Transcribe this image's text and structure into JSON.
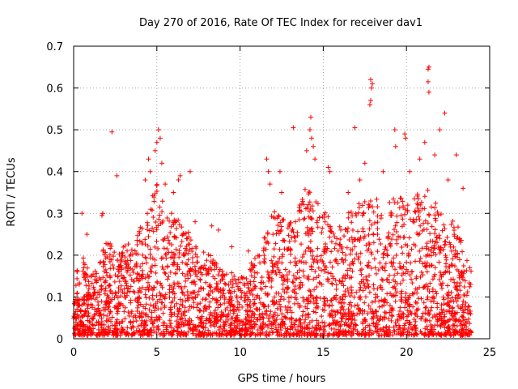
{
  "chart_data": {
    "type": "scatter",
    "title": "Day 270 of 2016, Rate Of TEC Index for receiver dav1",
    "xlabel": "GPS time / hours",
    "ylabel": "ROTI / TECUs",
    "xlim": [
      0,
      25
    ],
    "ylim": [
      0,
      0.7
    ],
    "xticks": [
      0,
      5,
      10,
      15,
      20,
      25
    ],
    "yticks": [
      0,
      0.1,
      0.2,
      0.3,
      0.4,
      0.5,
      0.6,
      0.7
    ],
    "xtick_labels": [
      "0",
      "5",
      "10",
      "15",
      "20",
      "25"
    ],
    "ytick_labels": [
      "0",
      "0.1",
      "0.2",
      "0.3",
      "0.4",
      "0.5",
      "0.6",
      "0.7"
    ],
    "grid": true,
    "marker": "plus",
    "color": "#ff0000",
    "envelope": {
      "x": [
        0,
        0.5,
        1,
        1.5,
        2,
        2.5,
        3,
        3.5,
        4,
        4.5,
        5,
        5.5,
        6,
        6.5,
        7,
        7.5,
        8,
        8.5,
        9,
        9.5,
        10,
        10.5,
        11,
        11.5,
        12,
        12.5,
        13,
        13.5,
        14,
        14.5,
        15,
        15.5,
        16,
        16.5,
        17,
        17.5,
        18,
        18.5,
        19,
        19.5,
        20,
        20.5,
        21,
        21.5,
        22,
        22.5,
        23,
        23.5,
        23.9
      ],
      "upper": [
        0.15,
        0.2,
        0.14,
        0.17,
        0.25,
        0.2,
        0.22,
        0.22,
        0.26,
        0.3,
        0.38,
        0.3,
        0.3,
        0.26,
        0.25,
        0.22,
        0.2,
        0.18,
        0.16,
        0.15,
        0.14,
        0.16,
        0.2,
        0.25,
        0.3,
        0.28,
        0.27,
        0.3,
        0.38,
        0.33,
        0.3,
        0.28,
        0.26,
        0.3,
        0.32,
        0.32,
        0.35,
        0.3,
        0.32,
        0.34,
        0.32,
        0.33,
        0.36,
        0.34,
        0.3,
        0.28,
        0.28,
        0.2,
        0.17
      ]
    },
    "points": [
      {
        "x": 0.5,
        "y": 0.3
      },
      {
        "x": 0.8,
        "y": 0.25
      },
      {
        "x": 1.7,
        "y": 0.295
      },
      {
        "x": 1.75,
        "y": 0.3
      },
      {
        "x": 2.3,
        "y": 0.495
      },
      {
        "x": 2.6,
        "y": 0.39
      },
      {
        "x": 4.3,
        "y": 0.38
      },
      {
        "x": 4.5,
        "y": 0.43
      },
      {
        "x": 4.6,
        "y": 0.4
      },
      {
        "x": 4.9,
        "y": 0.45
      },
      {
        "x": 5.0,
        "y": 0.47
      },
      {
        "x": 5.1,
        "y": 0.5
      },
      {
        "x": 5.2,
        "y": 0.48
      },
      {
        "x": 5.3,
        "y": 0.42
      },
      {
        "x": 5.5,
        "y": 0.37
      },
      {
        "x": 6.0,
        "y": 0.35
      },
      {
        "x": 6.3,
        "y": 0.38
      },
      {
        "x": 6.4,
        "y": 0.39
      },
      {
        "x": 7.0,
        "y": 0.4
      },
      {
        "x": 7.3,
        "y": 0.28
      },
      {
        "x": 8.3,
        "y": 0.27
      },
      {
        "x": 8.7,
        "y": 0.26
      },
      {
        "x": 9.5,
        "y": 0.22
      },
      {
        "x": 10.5,
        "y": 0.21
      },
      {
        "x": 11.6,
        "y": 0.43
      },
      {
        "x": 11.7,
        "y": 0.4
      },
      {
        "x": 11.8,
        "y": 0.37
      },
      {
        "x": 12.4,
        "y": 0.4
      },
      {
        "x": 12.5,
        "y": 0.35
      },
      {
        "x": 13.2,
        "y": 0.505
      },
      {
        "x": 13.6,
        "y": 0.32
      },
      {
        "x": 14.0,
        "y": 0.45
      },
      {
        "x": 14.2,
        "y": 0.5
      },
      {
        "x": 14.25,
        "y": 0.53
      },
      {
        "x": 14.3,
        "y": 0.48
      },
      {
        "x": 14.4,
        "y": 0.46
      },
      {
        "x": 14.5,
        "y": 0.43
      },
      {
        "x": 15.3,
        "y": 0.41
      },
      {
        "x": 15.4,
        "y": 0.4
      },
      {
        "x": 16.5,
        "y": 0.35
      },
      {
        "x": 16.9,
        "y": 0.505
      },
      {
        "x": 17.2,
        "y": 0.38
      },
      {
        "x": 17.5,
        "y": 0.42
      },
      {
        "x": 17.85,
        "y": 0.62
      },
      {
        "x": 17.9,
        "y": 0.6
      },
      {
        "x": 17.95,
        "y": 0.61
      },
      {
        "x": 17.8,
        "y": 0.56
      },
      {
        "x": 17.85,
        "y": 0.57
      },
      {
        "x": 18.6,
        "y": 0.4
      },
      {
        "x": 19.3,
        "y": 0.5
      },
      {
        "x": 19.35,
        "y": 0.46
      },
      {
        "x": 19.9,
        "y": 0.49
      },
      {
        "x": 19.95,
        "y": 0.48
      },
      {
        "x": 20.2,
        "y": 0.4
      },
      {
        "x": 20.8,
        "y": 0.43
      },
      {
        "x": 21.1,
        "y": 0.47
      },
      {
        "x": 21.3,
        "y": 0.645
      },
      {
        "x": 21.35,
        "y": 0.65
      },
      {
        "x": 21.3,
        "y": 0.615
      },
      {
        "x": 21.35,
        "y": 0.59
      },
      {
        "x": 21.7,
        "y": 0.44
      },
      {
        "x": 22.0,
        "y": 0.5
      },
      {
        "x": 22.3,
        "y": 0.54
      },
      {
        "x": 22.5,
        "y": 0.38
      },
      {
        "x": 23.0,
        "y": 0.44
      },
      {
        "x": 23.4,
        "y": 0.36
      },
      {
        "x": 23.8,
        "y": 0.17
      }
    ]
  }
}
